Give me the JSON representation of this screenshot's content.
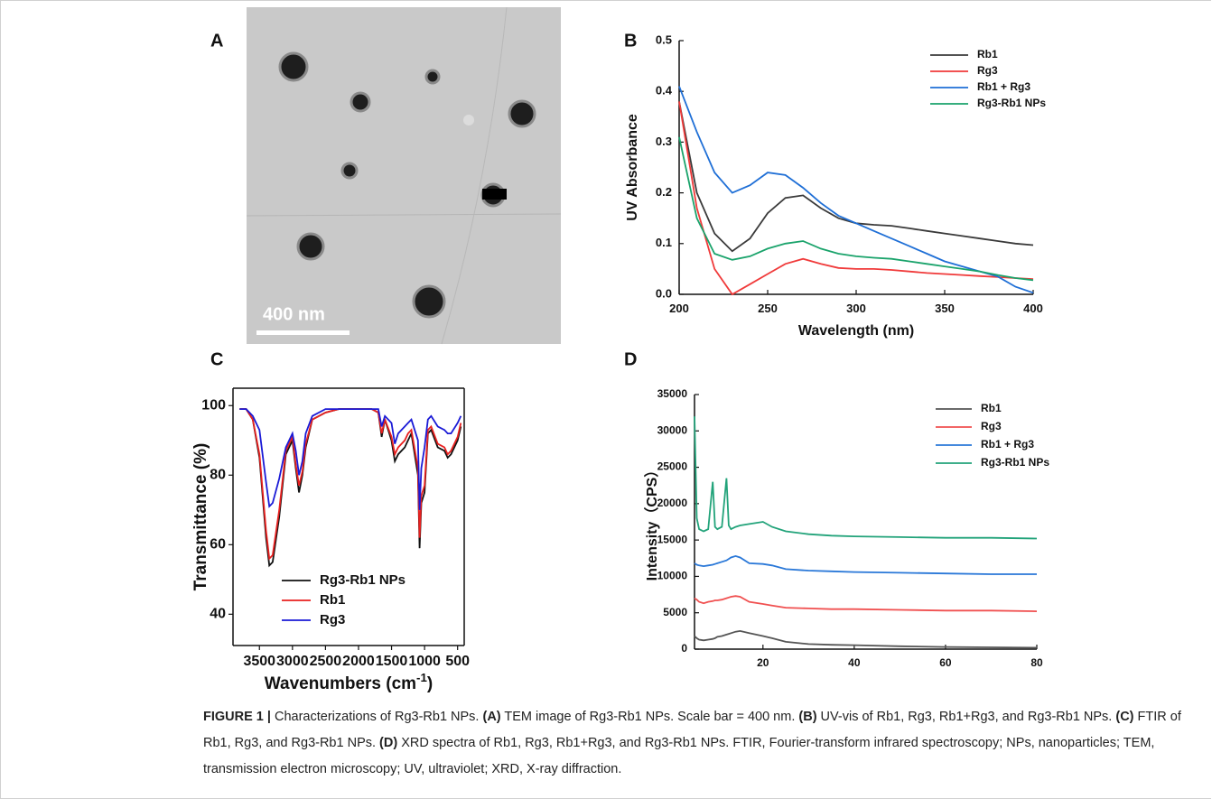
{
  "panel_labels": [
    "A",
    "B",
    "C",
    "D"
  ],
  "tem": {
    "scale_label": "400 nm"
  },
  "chart_data": [
    {
      "type": "line",
      "xlabel": "Wavelength (nm)",
      "ylabel": "UV Absorbance",
      "legend": "upper right",
      "x": [
        200,
        210,
        220,
        230,
        240,
        250,
        260,
        270,
        280,
        290,
        300,
        310,
        320,
        330,
        340,
        350,
        360,
        370,
        380,
        390,
        400
      ],
      "xlim": [
        200,
        400
      ],
      "xticks": [
        200,
        250,
        300,
        350,
        400
      ],
      "ylim": [
        0,
        0.5
      ],
      "yticks": [
        {
          "value": 0,
          "label": "0.0"
        },
        0.1,
        0.2,
        0.3,
        0.4,
        0.5
      ],
      "series": [
        {
          "name": "Rb1",
          "color": "#3a3a3a",
          "values": [
            0.38,
            0.2,
            0.12,
            0.085,
            0.11,
            0.16,
            0.19,
            0.195,
            0.17,
            0.15,
            0.14,
            0.137,
            0.135,
            0.13,
            0.125,
            0.12,
            0.115,
            0.11,
            0.105,
            0.1,
            0.097
          ]
        },
        {
          "name": "Rg3",
          "color": "#f03a3a",
          "values": [
            0.38,
            0.17,
            0.05,
            0.0,
            0.02,
            0.04,
            0.06,
            0.07,
            0.06,
            0.052,
            0.05,
            0.05,
            0.048,
            0.045,
            0.042,
            0.04,
            0.038,
            0.036,
            0.034,
            0.032,
            0.03
          ]
        },
        {
          "name": "Rb1 + Rg3",
          "color": "#1f6fd6",
          "values": [
            0.41,
            0.32,
            0.24,
            0.2,
            0.215,
            0.24,
            0.235,
            0.21,
            0.18,
            0.155,
            0.14,
            0.125,
            0.11,
            0.095,
            0.08,
            0.065,
            0.055,
            0.045,
            0.035,
            0.015,
            0.003
          ]
        },
        {
          "name": "Rg3-Rb1 NPs",
          "color": "#1aa36b",
          "values": [
            0.31,
            0.15,
            0.08,
            0.068,
            0.075,
            0.09,
            0.1,
            0.105,
            0.09,
            0.08,
            0.075,
            0.072,
            0.07,
            0.065,
            0.06,
            0.055,
            0.05,
            0.045,
            0.038,
            0.032,
            0.028
          ]
        }
      ]
    },
    {
      "type": "line",
      "xlabel": [
        "Wavenumbers (cm",
        "-1",
        ")"
      ],
      "ylabel": "Transmittance (%)",
      "legend": "lower right",
      "x": [
        3800,
        3700,
        3600,
        3500,
        3400,
        3350,
        3300,
        3200,
        3100,
        3000,
        2950,
        2900,
        2850,
        2800,
        2700,
        2500,
        2300,
        2000,
        1800,
        1700,
        1650,
        1600,
        1500,
        1450,
        1400,
        1300,
        1250,
        1200,
        1100,
        1075,
        1050,
        1000,
        950,
        900,
        800,
        700,
        650,
        600,
        500,
        450
      ],
      "xlim": [
        3900,
        400
      ],
      "xticks": [
        3500,
        3000,
        2500,
        2000,
        1500,
        1000,
        500
      ],
      "ylim": [
        31,
        105
      ],
      "yticks": [
        40,
        60,
        80,
        100
      ],
      "series": [
        {
          "name": "Rg3-Rb1 NPs",
          "color": "#111111",
          "values": [
            99,
            99,
            96,
            85,
            62,
            54,
            55,
            68,
            86,
            90,
            82,
            75,
            80,
            88,
            96,
            98,
            99,
            99,
            99,
            98,
            91,
            96,
            90,
            84,
            86,
            88,
            90,
            92,
            80,
            59,
            72,
            75,
            92,
            93,
            88,
            87,
            85,
            86,
            90,
            94
          ]
        },
        {
          "name": "Rb1",
          "color": "#e8201f",
          "values": [
            99,
            99,
            96,
            86,
            64,
            56,
            57,
            70,
            87,
            91,
            83,
            77,
            81,
            89,
            96,
            98,
            99,
            99,
            99,
            98,
            92,
            96,
            91,
            86,
            88,
            90,
            92,
            93,
            82,
            62,
            74,
            77,
            93,
            94,
            89,
            88,
            86,
            87,
            91,
            95
          ]
        },
        {
          "name": "Rg3",
          "color": "#1a1ad6",
          "values": [
            99,
            99,
            97,
            93,
            78,
            71,
            72,
            79,
            88,
            92,
            87,
            80,
            84,
            92,
            97,
            99,
            99,
            99,
            99,
            99,
            94,
            97,
            95,
            89,
            92,
            94,
            95,
            96,
            90,
            70,
            82,
            88,
            96,
            97,
            94,
            93,
            92,
            92,
            95,
            97
          ]
        }
      ]
    },
    {
      "type": "line",
      "ylabel": "Intensity（CPS）",
      "legend": "upper right",
      "x": [
        5,
        5.5,
        6,
        7,
        8,
        9,
        9.5,
        10,
        11,
        12,
        12.5,
        13,
        14,
        15,
        17,
        20,
        22,
        25,
        30,
        35,
        40,
        50,
        60,
        70,
        80
      ],
      "xlim": [
        5,
        80
      ],
      "xticks": [
        20,
        40,
        60,
        80
      ],
      "ylim": [
        0,
        35000
      ],
      "yticks": [
        0,
        5000,
        10000,
        15000,
        20000,
        25000,
        30000,
        35000
      ],
      "series": [
        {
          "name": "Rb1",
          "color": "#555555",
          "values": [
            1800,
            1500,
            1300,
            1200,
            1300,
            1400,
            1500,
            1700,
            1800,
            2000,
            2100,
            2200,
            2400,
            2500,
            2200,
            1800,
            1500,
            1000,
            700,
            600,
            550,
            400,
            300,
            250,
            200
          ]
        },
        {
          "name": "Rg3",
          "color": "#f05050",
          "values": [
            7000,
            6800,
            6500,
            6300,
            6500,
            6600,
            6700,
            6700,
            6800,
            7000,
            7100,
            7200,
            7300,
            7200,
            6500,
            6200,
            6000,
            5700,
            5600,
            5500,
            5500,
            5400,
            5300,
            5300,
            5200
          ]
        },
        {
          "name": "Rb1 + Rg3",
          "color": "#2a78d8",
          "values": [
            11800,
            11600,
            11500,
            11400,
            11500,
            11600,
            11700,
            11800,
            12000,
            12200,
            12400,
            12600,
            12800,
            12600,
            11800,
            11700,
            11500,
            11000,
            10800,
            10700,
            10600,
            10500,
            10400,
            10300,
            10300
          ]
        },
        {
          "name": "Rg3-Rb1 NPs",
          "color": "#22a37a",
          "values": [
            32000,
            18000,
            16500,
            16200,
            16500,
            23000,
            16800,
            16500,
            16800,
            23500,
            17000,
            16500,
            16800,
            17000,
            17200,
            17500,
            16800,
            16200,
            15800,
            15600,
            15500,
            15400,
            15300,
            15300,
            15200
          ]
        }
      ]
    }
  ],
  "caption": [
    {
      "text": "FIGURE 1 |",
      "bold": true
    },
    {
      "text": " Characterizations of Rg3-Rb1 NPs. ",
      "bold": false
    },
    {
      "text": "(A)",
      "bold": true
    },
    {
      "text": " TEM image of Rg3-Rb1 NPs. Scale bar = 400 nm. ",
      "bold": false
    },
    {
      "text": "(B)",
      "bold": true
    },
    {
      "text": " UV-vis of Rb1, Rg3, Rb1+Rg3, and Rg3-Rb1 NPs. ",
      "bold": false
    },
    {
      "text": "(C)",
      "bold": true
    },
    {
      "text": " FTIR of Rb1, Rg3, and Rg3-Rb1 NPs. ",
      "bold": false
    },
    {
      "text": "(D)",
      "bold": true
    },
    {
      "text": " XRD spectra of Rb1, Rg3, Rb1+Rg3, and Rg3-Rb1 NPs. FTIR, Fourier-transform infrared spectroscopy; NPs, nanoparticles; TEM, transmission electron microscopy; UV, ultraviolet; XRD, X-ray diffraction.",
      "bold": false
    }
  ]
}
